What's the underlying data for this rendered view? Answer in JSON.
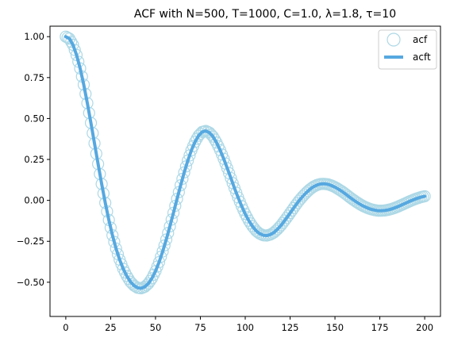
{
  "chart_data": {
    "type": "line",
    "title": "ACF with N=500, T=1000, C=1.0, λ=1.8, τ=10",
    "xlabel": "",
    "ylabel": "",
    "xlim": [
      -8.8,
      208.8
    ],
    "ylim": [
      -0.709,
      1.064
    ],
    "xticks": [
      0,
      25,
      50,
      75,
      100,
      125,
      150,
      175,
      200
    ],
    "yticks": [
      -0.5,
      -0.25,
      0.0,
      0.25,
      0.5,
      0.75,
      1.0
    ],
    "ytick_labels": [
      "−0.50",
      "−0.25",
      "0.00",
      "0.25",
      "0.50",
      "0.75",
      "1.00"
    ],
    "legend_position": "top-right",
    "grid": false,
    "series": [
      {
        "name": "acf",
        "style": "hollow-circles",
        "color": "#add8e6",
        "x": [
          0,
          2,
          4,
          6,
          8,
          10,
          12,
          14,
          16,
          18,
          20,
          22,
          24,
          26,
          28,
          30,
          32,
          34,
          36,
          38,
          40,
          42,
          44,
          46,
          48,
          50,
          52,
          54,
          56,
          58,
          60,
          62,
          64,
          66,
          68,
          70,
          72,
          74,
          76,
          78,
          80,
          82,
          84,
          86,
          88,
          90,
          92,
          94,
          96,
          98,
          100,
          102,
          104,
          106,
          108,
          110,
          112,
          114,
          116,
          118,
          120,
          122,
          124,
          126,
          128,
          130,
          132,
          134,
          136,
          138,
          140,
          142,
          144,
          146,
          148,
          150,
          152,
          154,
          156,
          158,
          160,
          162,
          164,
          166,
          168,
          170,
          172,
          174,
          176,
          178,
          180,
          182,
          184,
          186,
          188,
          190,
          192,
          194,
          196,
          198,
          200
        ],
        "y": [
          1.0,
          0.988,
          0.95,
          0.888,
          0.806,
          0.707,
          0.594,
          0.473,
          0.348,
          0.222,
          0.1,
          -0.015,
          -0.12,
          -0.213,
          -0.294,
          -0.362,
          -0.418,
          -0.462,
          -0.497,
          -0.52,
          -0.534,
          -0.537,
          -0.528,
          -0.508,
          -0.476,
          -0.432,
          -0.377,
          -0.312,
          -0.239,
          -0.159,
          -0.076,
          0.009,
          0.092,
          0.171,
          0.243,
          0.306,
          0.357,
          0.395,
          0.418,
          0.424,
          0.414,
          0.39,
          0.353,
          0.307,
          0.254,
          0.196,
          0.136,
          0.075,
          0.018,
          -0.035,
          -0.083,
          -0.124,
          -0.158,
          -0.185,
          -0.203,
          -0.213,
          -0.215,
          -0.209,
          -0.196,
          -0.176,
          -0.152,
          -0.123,
          -0.093,
          -0.062,
          -0.031,
          -0.002,
          0.024,
          0.047,
          0.067,
          0.083,
          0.094,
          0.1,
          0.101,
          0.098,
          0.091,
          0.081,
          0.068,
          0.054,
          0.038,
          0.021,
          0.005,
          -0.01,
          -0.024,
          -0.036,
          -0.046,
          -0.054,
          -0.059,
          -0.063,
          -0.063,
          -0.061,
          -0.057,
          -0.051,
          -0.043,
          -0.034,
          -0.024,
          -0.014,
          -0.004,
          0.005,
          0.013,
          0.02,
          0.025
        ],
        "marker_note": "same values as acft"
      },
      {
        "name": "acft",
        "style": "thick-line",
        "color": "#56a8e0"
      }
    ]
  }
}
